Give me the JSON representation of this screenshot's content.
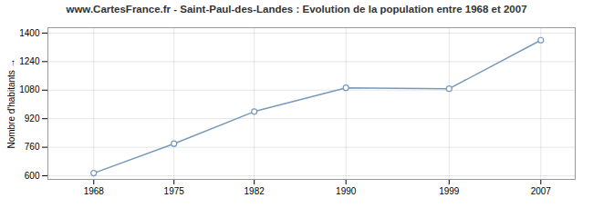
{
  "chart_data": {
    "type": "line",
    "title": "www.CartesFrance.fr - Saint-Paul-des-Landes : Evolution de la population entre 1968 et 2007",
    "ylabel": "Nombre d'habitants",
    "x": [
      1968,
      1975,
      1982,
      1990,
      1999,
      2007
    ],
    "values": [
      615,
      780,
      960,
      1093,
      1088,
      1360
    ],
    "color": "#7799bb",
    "marker": "circle",
    "xlim": [
      1964,
      2010
    ],
    "xticks": [
      1968,
      1975,
      1982,
      1990,
      1999,
      2007
    ],
    "ylim": [
      580,
      1430
    ],
    "yticks": [
      600,
      760,
      920,
      1080,
      1240,
      1400
    ],
    "grid": true
  }
}
